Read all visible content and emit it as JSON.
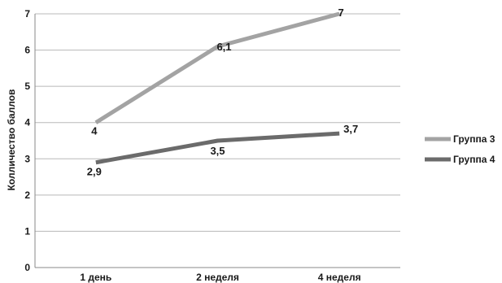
{
  "chart_data": {
    "type": "line",
    "categories": [
      "1 день",
      "2 неделя",
      "4 неделя"
    ],
    "ylabel": "Колличество баллов",
    "xlabel": "",
    "ylim": [
      0,
      7
    ],
    "yticks": [
      "0",
      "1",
      "2",
      "3",
      "4",
      "5",
      "6",
      "7"
    ],
    "grid": true,
    "legend_position": "right",
    "series": [
      {
        "name": "Группа 3",
        "values": [
          4,
          6.1,
          7
        ],
        "labels": [
          "4",
          "6,1",
          "7"
        ],
        "color": "#a3a3a3"
      },
      {
        "name": "Группа 4",
        "values": [
          2.9,
          3.5,
          3.7
        ],
        "labels": [
          "2,9",
          "3,5",
          "3,7"
        ],
        "color": "#6b6b6b"
      }
    ]
  }
}
